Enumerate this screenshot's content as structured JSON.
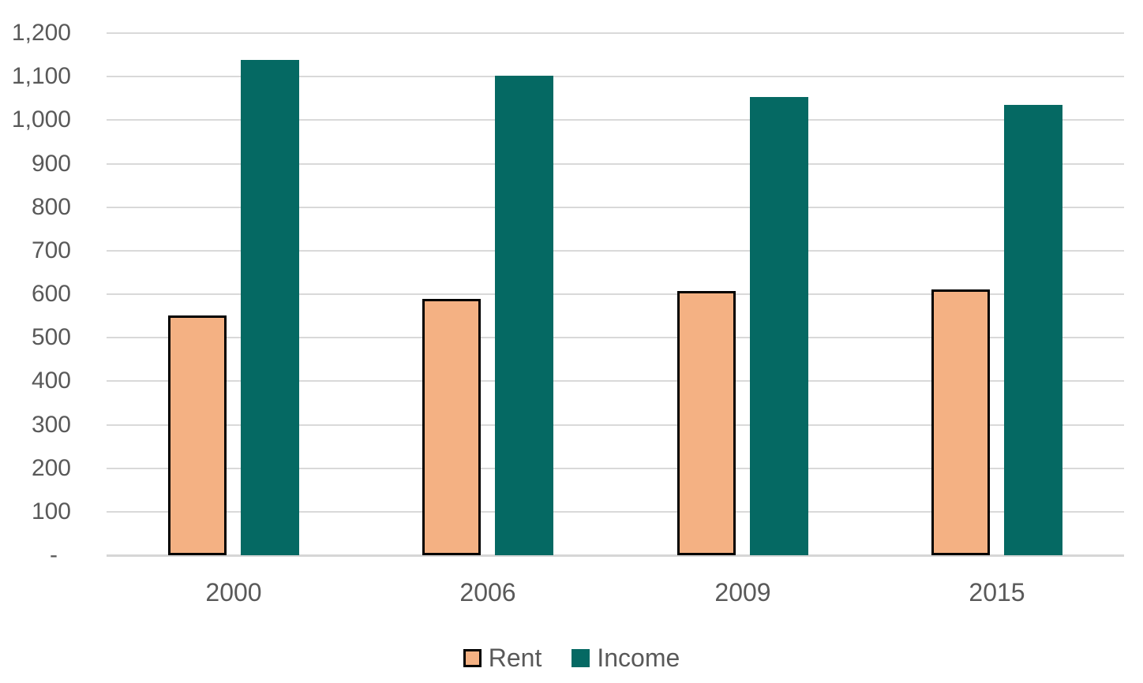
{
  "chart_data": {
    "type": "bar",
    "title": "",
    "xlabel": "",
    "ylabel": "",
    "categories": [
      "2000",
      "2006",
      "2009",
      "2015"
    ],
    "series": [
      {
        "name": "Rent",
        "values": [
          551,
          589,
          608,
          610
        ],
        "fill": "#F4B183",
        "border": "#000000"
      },
      {
        "name": "Income",
        "values": [
          1139,
          1102,
          1053,
          1035
        ],
        "fill": "#056963",
        "border": "none"
      }
    ],
    "ylim": [
      0,
      1200
    ],
    "ytick_step": 100,
    "ytick_labels_top_to_bottom": [
      "1,200",
      "1,100",
      "1,000",
      "900",
      "800",
      "700",
      "600",
      "500",
      "400",
      "300",
      "200",
      "100",
      "-"
    ],
    "grid": true,
    "legend_position": "bottom",
    "legend_labels": [
      "Rent",
      "Income"
    ],
    "colors": {
      "rent_fill": "#F4B183",
      "rent_border": "#000000",
      "income_fill": "#056963",
      "gridline": "#D9D9D9",
      "axis_line": "#D6D6D6",
      "tick_text": "#595959",
      "background": "#FFFFFF"
    }
  }
}
